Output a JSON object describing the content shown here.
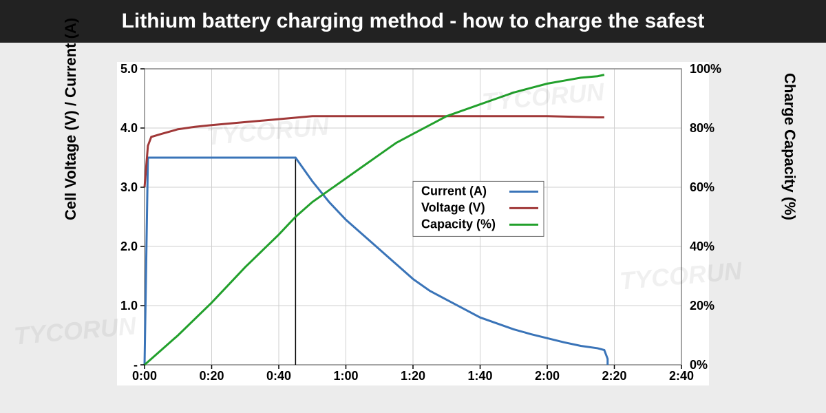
{
  "title": "Lithium battery charging method - how to charge the safest",
  "chart": {
    "type": "line",
    "background_color": "#ffffff",
    "page_bg": "#ececec",
    "grid_color": "#cfcfcf",
    "border_color": "#888888",
    "line_width": 3,
    "left_axis": {
      "label": "Cell Voltage (V) / Current (A)",
      "ylim": [
        0,
        5
      ],
      "ticks": [
        0,
        1,
        2,
        3,
        4,
        5
      ],
      "tick_labels": [
        "-",
        "1.0",
        "2.0",
        "3.0",
        "4.0",
        "5.0"
      ]
    },
    "right_axis": {
      "label": "Charge Capacity (%)",
      "ylim": [
        0,
        100
      ],
      "ticks": [
        0,
        20,
        40,
        60,
        80,
        100
      ],
      "tick_labels": [
        "0%",
        "20%",
        "40%",
        "60%",
        "80%",
        "100%"
      ]
    },
    "x_axis": {
      "ticks": [
        0,
        20,
        40,
        60,
        80,
        100,
        120,
        140,
        160
      ],
      "tick_labels": [
        "0:00",
        "0:20",
        "0:40",
        "1:00",
        "1:20",
        "1:40",
        "2:00",
        "2:20",
        "2:40"
      ]
    },
    "legend": {
      "items": [
        {
          "label": "Current (A)",
          "color": "#3a74b8"
        },
        {
          "label": "Voltage (V)",
          "color": "#a03838"
        },
        {
          "label": "Capacity (%)",
          "color": "#22a02c"
        }
      ]
    },
    "marker_line_x": 45,
    "series": {
      "current": {
        "color": "#3a74b8",
        "axis": "left",
        "points": [
          [
            0,
            0
          ],
          [
            1,
            3.5
          ],
          [
            2,
            3.5
          ],
          [
            44,
            3.5
          ],
          [
            45,
            3.5
          ],
          [
            50,
            3.1
          ],
          [
            55,
            2.75
          ],
          [
            60,
            2.45
          ],
          [
            65,
            2.2
          ],
          [
            70,
            1.95
          ],
          [
            75,
            1.7
          ],
          [
            80,
            1.45
          ],
          [
            85,
            1.25
          ],
          [
            90,
            1.1
          ],
          [
            95,
            0.95
          ],
          [
            100,
            0.8
          ],
          [
            105,
            0.7
          ],
          [
            110,
            0.6
          ],
          [
            115,
            0.52
          ],
          [
            120,
            0.45
          ],
          [
            125,
            0.38
          ],
          [
            130,
            0.32
          ],
          [
            135,
            0.28
          ],
          [
            137,
            0.25
          ],
          [
            138,
            0.1
          ],
          [
            138,
            0
          ]
        ]
      },
      "voltage": {
        "color": "#a03838",
        "axis": "left",
        "points": [
          [
            0,
            3.0
          ],
          [
            1,
            3.7
          ],
          [
            2,
            3.85
          ],
          [
            5,
            3.9
          ],
          [
            10,
            3.98
          ],
          [
            15,
            4.02
          ],
          [
            20,
            4.05
          ],
          [
            30,
            4.1
          ],
          [
            40,
            4.15
          ],
          [
            50,
            4.2
          ],
          [
            60,
            4.2
          ],
          [
            80,
            4.2
          ],
          [
            100,
            4.2
          ],
          [
            120,
            4.2
          ],
          [
            135,
            4.18
          ],
          [
            137,
            4.18
          ]
        ]
      },
      "capacity": {
        "color": "#22a02c",
        "axis": "right",
        "points": [
          [
            0,
            0
          ],
          [
            10,
            10
          ],
          [
            20,
            21
          ],
          [
            30,
            33
          ],
          [
            40,
            44
          ],
          [
            45,
            50
          ],
          [
            50,
            55
          ],
          [
            55,
            59
          ],
          [
            60,
            63
          ],
          [
            65,
            67
          ],
          [
            70,
            71
          ],
          [
            75,
            75
          ],
          [
            80,
            78
          ],
          [
            85,
            81
          ],
          [
            90,
            84
          ],
          [
            95,
            86
          ],
          [
            100,
            88
          ],
          [
            105,
            90
          ],
          [
            110,
            92
          ],
          [
            115,
            93.5
          ],
          [
            120,
            95
          ],
          [
            125,
            96
          ],
          [
            130,
            97
          ],
          [
            135,
            97.5
          ],
          [
            137,
            98
          ]
        ]
      }
    }
  },
  "watermark_text": "TYCORUN"
}
